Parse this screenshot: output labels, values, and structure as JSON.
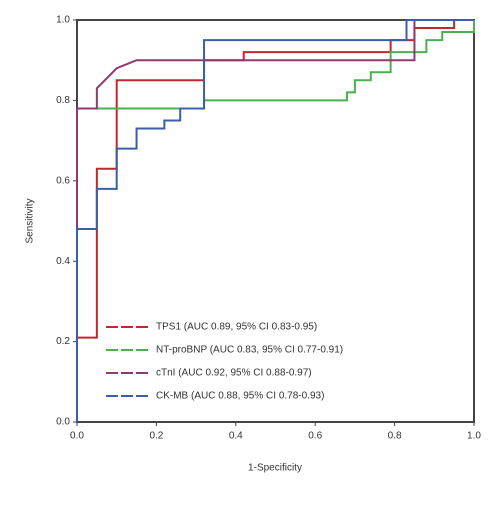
{
  "chart_data": {
    "type": "line",
    "xlabel": "1-Specificity",
    "ylabel": "Sensitivity",
    "xlim": [
      0,
      1
    ],
    "ylim": [
      0,
      1
    ],
    "xticks": [
      {
        "value": 0,
        "label": "0.0"
      },
      0.2,
      0.4,
      0.6,
      0.8,
      {
        "value": 1,
        "label": "1.0"
      }
    ],
    "yticks": [
      {
        "value": 0,
        "label": "0.0"
      },
      0.2,
      0.4,
      0.6,
      0.8,
      {
        "value": 1,
        "label": "1.0"
      }
    ],
    "series": [
      {
        "name": "TPS1 (AUC 0.89, 95% CI 0.83-0.95)",
        "color": "#c0282d",
        "x": [
          0,
          0,
          0.05,
          0.05,
          0.1,
          0.1,
          0.32,
          0.32,
          0.42,
          0.42,
          0.79,
          0.79,
          0.85,
          0.85,
          0.95,
          0.95,
          1
        ],
        "values": [
          0,
          0.21,
          0.21,
          0.63,
          0.63,
          0.85,
          0.85,
          0.9,
          0.9,
          0.92,
          0.92,
          0.95,
          0.95,
          0.98,
          0.98,
          1,
          1
        ]
      },
      {
        "name": "NT-proBNP (AUC 0.83, 95% CI 0.77-0.91)",
        "color": "#4caf50",
        "x": [
          0,
          0,
          0.32,
          0.32,
          0.68,
          0.68,
          0.7,
          0.7,
          0.74,
          0.74,
          0.79,
          0.79,
          0.88,
          0.88,
          0.92,
          0.92,
          1,
          1
        ],
        "values": [
          0,
          0.78,
          0.78,
          0.8,
          0.8,
          0.82,
          0.82,
          0.85,
          0.85,
          0.87,
          0.87,
          0.92,
          0.92,
          0.95,
          0.95,
          0.97,
          0.97,
          1
        ]
      },
      {
        "name": "cTnI (AUC 0.92, 95% CI 0.88-0.97)",
        "color": "#8e3a6e",
        "x": [
          0,
          0,
          0.05,
          0.05,
          0.07,
          0.1,
          0.15,
          0.85,
          0.85,
          1
        ],
        "values": [
          0,
          0.78,
          0.78,
          0.83,
          0.85,
          0.88,
          0.9,
          0.9,
          1,
          1
        ]
      },
      {
        "name": "CK-MB (AUC 0.88, 95% CI 0.78-0.93)",
        "color": "#3a5fa8",
        "x": [
          0,
          0,
          0.05,
          0.05,
          0.1,
          0.1,
          0.15,
          0.15,
          0.22,
          0.22,
          0.26,
          0.26,
          0.32,
          0.32,
          0.83,
          0.83,
          1
        ],
        "values": [
          0,
          0.48,
          0.48,
          0.58,
          0.58,
          0.68,
          0.68,
          0.73,
          0.73,
          0.75,
          0.75,
          0.78,
          0.78,
          0.95,
          0.95,
          1,
          1
        ]
      }
    ]
  }
}
